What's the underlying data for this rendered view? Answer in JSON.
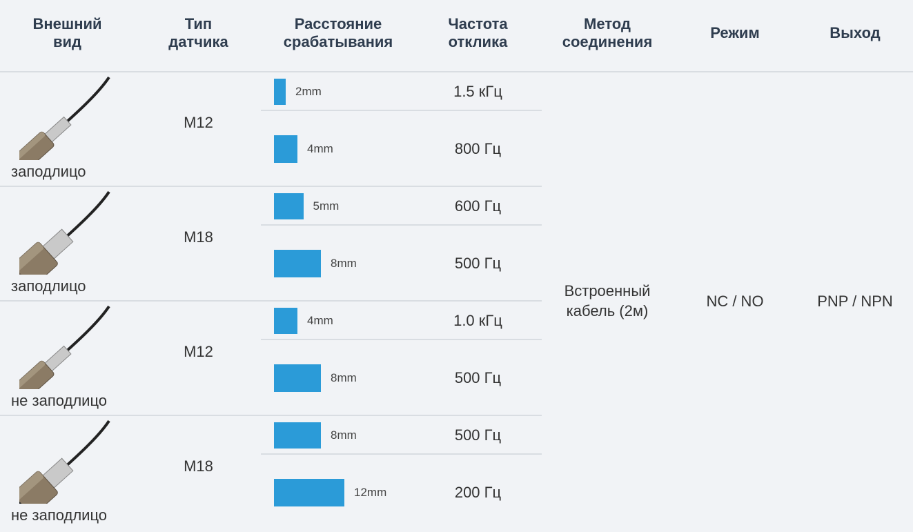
{
  "table": {
    "header": [
      "Внешний вид",
      "Тип датчика",
      "Расстояние срабатывания",
      "Частота отклика",
      "Метод соединения",
      "Режим",
      "Выход"
    ],
    "groups": [
      {
        "mount": "заподлицо",
        "type": "M12",
        "rows": [
          {
            "distance": {
              "value": 2,
              "label": "2mm"
            },
            "frequency": "1.5 кГц"
          },
          {
            "distance": {
              "value": 4,
              "label": "4mm"
            },
            "frequency": "800 Гц"
          }
        ]
      },
      {
        "mount": "заподлицо",
        "type": "M18",
        "rows": [
          {
            "distance": {
              "value": 5,
              "label": "5mm"
            },
            "frequency": "600 Гц"
          },
          {
            "distance": {
              "value": 8,
              "label": "8mm"
            },
            "frequency": "500 Гц"
          }
        ]
      },
      {
        "mount": "не заподлицо",
        "type": "M12",
        "rows": [
          {
            "distance": {
              "value": 4,
              "label": "4mm"
            },
            "frequency": "1.0 кГц"
          },
          {
            "distance": {
              "value": 8,
              "label": "8mm"
            },
            "frequency": "500 Гц"
          }
        ]
      },
      {
        "mount": "не заподлицо",
        "type": "M18",
        "rows": [
          {
            "distance": {
              "value": 8,
              "label": "8mm"
            },
            "frequency": "500 Гц"
          },
          {
            "distance": {
              "value": 12,
              "label": "12mm"
            },
            "frequency": "200 Гц"
          }
        ]
      }
    ],
    "method": "Встроенный кабель (2м)",
    "mode": "NC / NO",
    "output": "PNP / NPN"
  }
}
